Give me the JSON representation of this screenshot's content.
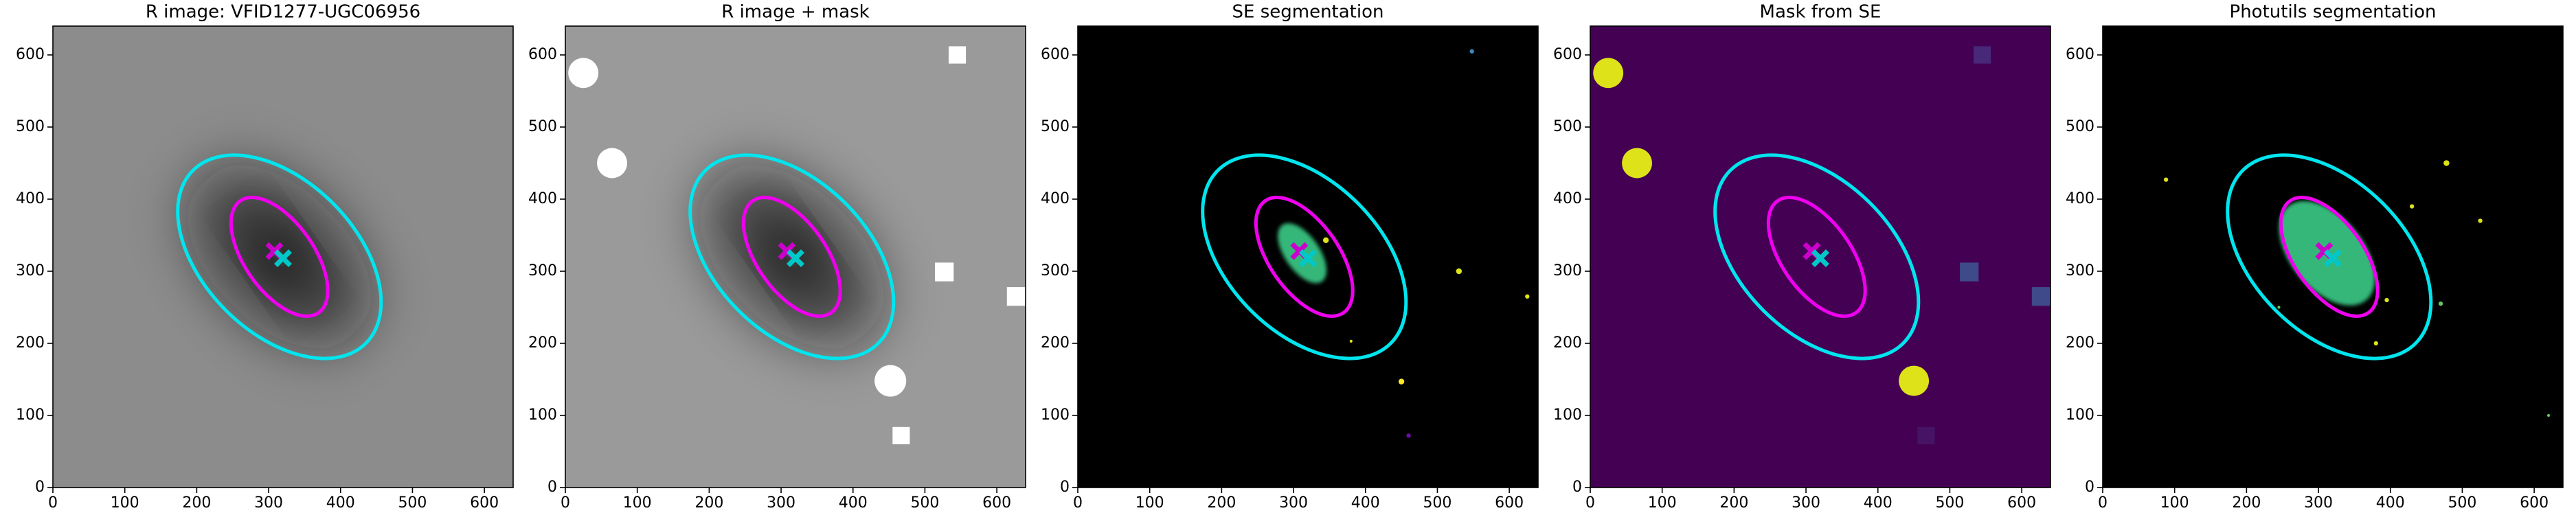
{
  "chart_data": [
    {
      "type": "image",
      "title": "R image: VFID1277-UGC06956",
      "background": "#8c8c8c",
      "galaxy": "#101010",
      "xlim": [
        0,
        640
      ],
      "ylim": [
        0,
        640
      ],
      "xticks": [
        0,
        100,
        200,
        300,
        400,
        500,
        600
      ],
      "yticks": [
        0,
        100,
        200,
        300,
        400,
        500,
        600
      ],
      "ellipses": [
        {
          "cx": 315,
          "cy": 320,
          "a": 170,
          "b": 105,
          "angle": -45,
          "color": "#00e5ee"
        },
        {
          "cx": 315,
          "cy": 320,
          "a": 95,
          "b": 48,
          "angle": -55,
          "color": "#ee00ee"
        }
      ],
      "markers": [
        {
          "x": 308,
          "y": 328,
          "color": "#cc00cc"
        },
        {
          "x": 320,
          "y": 318,
          "color": "#00c8c8"
        }
      ]
    },
    {
      "type": "image",
      "title": "R image + mask",
      "background": "#9a9a9a",
      "galaxy": "#101010",
      "xlim": [
        0,
        640
      ],
      "ylim": [
        0,
        640
      ],
      "xticks": [
        0,
        100,
        200,
        300,
        400,
        500,
        600
      ],
      "yticks": [
        0,
        100,
        200,
        300,
        400,
        500,
        600
      ],
      "ellipses": [
        {
          "cx": 315,
          "cy": 320,
          "a": 170,
          "b": 105,
          "angle": -45,
          "color": "#00e5ee"
        },
        {
          "cx": 315,
          "cy": 320,
          "a": 95,
          "b": 48,
          "angle": -55,
          "color": "#ee00ee"
        }
      ],
      "markers": [
        {
          "x": 308,
          "y": 328,
          "color": "#cc00cc"
        },
        {
          "x": 320,
          "y": 318,
          "color": "#00c8c8"
        }
      ],
      "masks": [
        {
          "shape": "circle",
          "x": 25,
          "y": 575,
          "size": 21,
          "color": "#ffffff"
        },
        {
          "shape": "circle",
          "x": 65,
          "y": 450,
          "size": 21,
          "color": "#ffffff"
        },
        {
          "shape": "circle",
          "x": 452,
          "y": 148,
          "size": 22,
          "color": "#ffffff"
        },
        {
          "shape": "square",
          "x": 545,
          "y": 600,
          "size": 12,
          "color": "#ffffff"
        },
        {
          "shape": "square",
          "x": 527,
          "y": 299,
          "size": 13,
          "color": "#ffffff"
        },
        {
          "shape": "square",
          "x": 627,
          "y": 265,
          "size": 13,
          "color": "#ffffff"
        },
        {
          "shape": "square",
          "x": 467,
          "y": 72,
          "size": 12,
          "color": "#ffffff"
        }
      ]
    },
    {
      "type": "image",
      "title": "SE segmentation",
      "background": "#000000",
      "xlim": [
        0,
        640
      ],
      "ylim": [
        0,
        640
      ],
      "xticks": [
        0,
        100,
        200,
        300,
        400,
        500,
        600
      ],
      "yticks": [
        0,
        100,
        200,
        300,
        400,
        500,
        600
      ],
      "blobs": [
        {
          "cx": 312,
          "cy": 325,
          "a": 48,
          "b": 24,
          "angle": -55,
          "color": "#35b779"
        }
      ],
      "sources": [
        {
          "x": 530,
          "y": 300,
          "size": 4,
          "color": "#dde318"
        },
        {
          "x": 450,
          "y": 147,
          "size": 4,
          "color": "#fde725"
        },
        {
          "x": 625,
          "y": 265,
          "size": 3,
          "color": "#dde318"
        },
        {
          "x": 548,
          "y": 605,
          "size": 3,
          "color": "#3b8bc2"
        },
        {
          "x": 460,
          "y": 72,
          "size": 3,
          "color": "#6a0dad"
        },
        {
          "x": 345,
          "y": 343,
          "size": 4,
          "color": "#dde318"
        },
        {
          "x": 380,
          "y": 203,
          "size": 2,
          "color": "#dde318"
        }
      ],
      "ellipses": [
        {
          "cx": 315,
          "cy": 320,
          "a": 170,
          "b": 105,
          "angle": -45,
          "color": "#00e5ee"
        },
        {
          "cx": 315,
          "cy": 320,
          "a": 95,
          "b": 48,
          "angle": -55,
          "color": "#ee00ee"
        }
      ],
      "markers": [
        {
          "x": 308,
          "y": 328,
          "color": "#cc00cc"
        },
        {
          "x": 320,
          "y": 318,
          "color": "#00c8c8"
        }
      ]
    },
    {
      "type": "image",
      "title": "Mask from SE",
      "background": "#440154",
      "xlim": [
        0,
        640
      ],
      "ylim": [
        0,
        640
      ],
      "xticks": [
        0,
        100,
        200,
        300,
        400,
        500,
        600
      ],
      "yticks": [
        0,
        100,
        200,
        300,
        400,
        500,
        600
      ],
      "masks": [
        {
          "shape": "circle",
          "x": 25,
          "y": 575,
          "size": 21,
          "color": "#dde318"
        },
        {
          "shape": "circle",
          "x": 65,
          "y": 450,
          "size": 21,
          "color": "#dde318"
        },
        {
          "shape": "circle",
          "x": 450,
          "y": 148,
          "size": 21,
          "color": "#dde318"
        },
        {
          "shape": "square",
          "x": 545,
          "y": 600,
          "size": 12,
          "color": "#482878"
        },
        {
          "shape": "square",
          "x": 527,
          "y": 299,
          "size": 13,
          "color": "#3e4a89"
        },
        {
          "shape": "square",
          "x": 627,
          "y": 265,
          "size": 13,
          "color": "#3e4a89"
        },
        {
          "shape": "square",
          "x": 467,
          "y": 72,
          "size": 12,
          "color": "#471365"
        }
      ],
      "ellipses": [
        {
          "cx": 315,
          "cy": 320,
          "a": 170,
          "b": 105,
          "angle": -45,
          "color": "#00e5ee"
        },
        {
          "cx": 315,
          "cy": 320,
          "a": 95,
          "b": 48,
          "angle": -55,
          "color": "#ee00ee"
        }
      ],
      "markers": [
        {
          "x": 308,
          "y": 328,
          "color": "#cc00cc"
        },
        {
          "x": 320,
          "y": 318,
          "color": "#00c8c8"
        }
      ]
    },
    {
      "type": "image",
      "title": "Photutils segmentation",
      "background": "#000000",
      "xlim": [
        0,
        640
      ],
      "ylim": [
        0,
        640
      ],
      "xticks": [
        0,
        100,
        200,
        300,
        400,
        500,
        600
      ],
      "yticks": [
        0,
        100,
        200,
        300,
        400,
        500,
        600
      ],
      "blobs": [
        {
          "cx": 312,
          "cy": 325,
          "a": 85,
          "b": 50,
          "angle": -50,
          "color": "#35b779"
        }
      ],
      "sources": [
        {
          "x": 88,
          "y": 427,
          "size": 3,
          "color": "#dde318"
        },
        {
          "x": 478,
          "y": 450,
          "size": 4,
          "color": "#dde318"
        },
        {
          "x": 430,
          "y": 390,
          "size": 3,
          "color": "#dde318"
        },
        {
          "x": 525,
          "y": 370,
          "size": 3,
          "color": "#dde318"
        },
        {
          "x": 395,
          "y": 260,
          "size": 3,
          "color": "#dde318"
        },
        {
          "x": 470,
          "y": 255,
          "size": 3,
          "color": "#5ec962"
        },
        {
          "x": 245,
          "y": 250,
          "size": 2,
          "color": "#5ec962"
        },
        {
          "x": 380,
          "y": 200,
          "size": 3,
          "color": "#dde318"
        },
        {
          "x": 620,
          "y": 100,
          "size": 2,
          "color": "#5ec962"
        }
      ],
      "ellipses": [
        {
          "cx": 315,
          "cy": 320,
          "a": 170,
          "b": 105,
          "angle": -45,
          "color": "#00e5ee"
        },
        {
          "cx": 315,
          "cy": 320,
          "a": 95,
          "b": 48,
          "angle": -55,
          "color": "#ee00ee"
        }
      ],
      "markers": [
        {
          "x": 308,
          "y": 328,
          "color": "#cc00cc"
        },
        {
          "x": 320,
          "y": 318,
          "color": "#00c8c8"
        }
      ]
    }
  ]
}
